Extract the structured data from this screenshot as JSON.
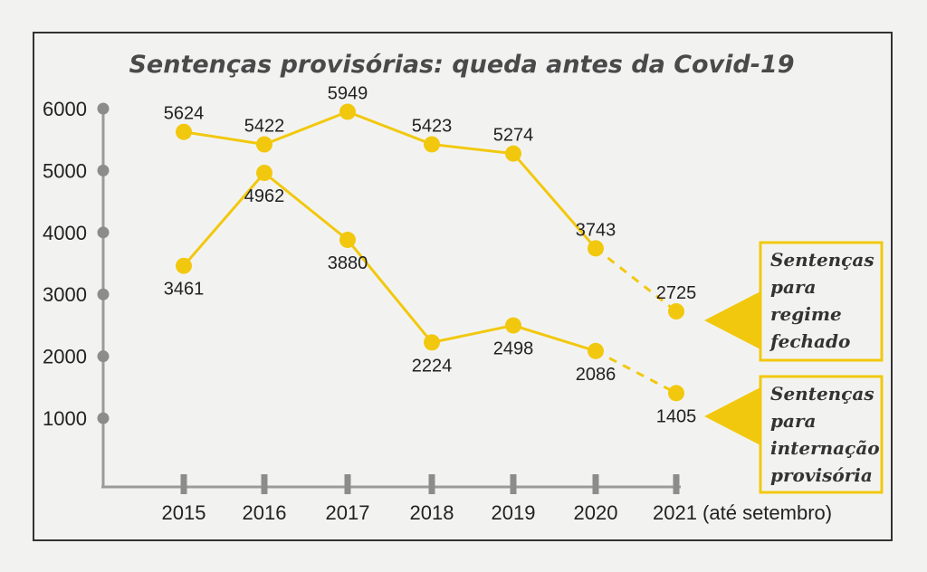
{
  "chart_data": {
    "type": "line",
    "title": "Sentenças provisórias: queda antes da Covid-19",
    "categories": [
      "2015",
      "2016",
      "2017",
      "2018",
      "2019",
      "2020",
      "2021 (até setembro)"
    ],
    "y_ticks": [
      "6000",
      "5000",
      "4000",
      "3000",
      "2000",
      "1000"
    ],
    "ylim": [
      0,
      6000
    ],
    "grid": false,
    "colors": {
      "line": "#f2c80f",
      "axis": "#9b9b9b",
      "tick_dot": "#8c8c8c",
      "legend_border": "#f2c80f",
      "frame": "#333333"
    },
    "series": [
      {
        "name": "Sentenças para regime fechado",
        "legend_lines": [
          "Sentenças",
          "para",
          "regime",
          "fechado"
        ],
        "values": [
          5624,
          5422,
          5949,
          5423,
          5274,
          3743,
          2725
        ],
        "labels": [
          "5624",
          "5422",
          "5949",
          "5423",
          "5274",
          "3743",
          "2725"
        ],
        "dashed_last_segment": true
      },
      {
        "name": "Sentenças para internação provisória",
        "legend_lines": [
          "Sentenças",
          "para",
          "internação",
          "provisória"
        ],
        "values": [
          3461,
          4962,
          3880,
          2224,
          2498,
          2086,
          1405
        ],
        "labels": [
          "3461",
          "4962",
          "3880",
          "2224",
          "2498",
          "2086",
          "1405"
        ],
        "dashed_last_segment": true
      }
    ]
  }
}
